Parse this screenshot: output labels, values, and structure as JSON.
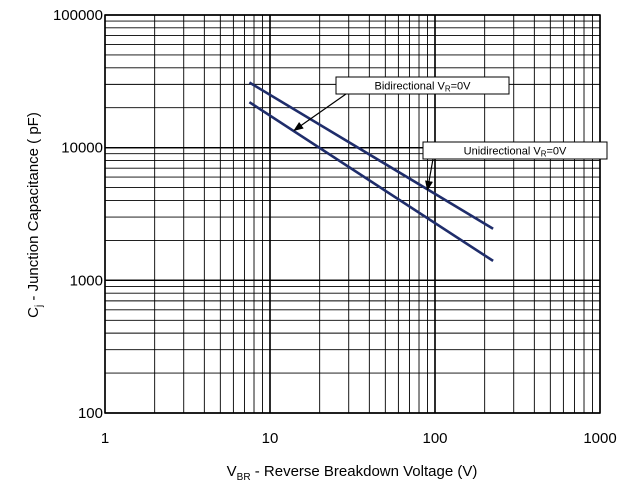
{
  "chart_data": {
    "type": "line",
    "x_scale": "log",
    "y_scale": "log",
    "xlim": [
      1,
      1000
    ],
    "ylim": [
      100,
      100000
    ],
    "grid": true,
    "x_tick_labels": [
      "1",
      "10",
      "100",
      "1000"
    ],
    "y_tick_labels": [
      "100",
      "1000",
      "10000",
      "100000"
    ],
    "xlabel": {
      "main": "V",
      "sub": "BR",
      "rest": " - Reverse Breakdown Voltage   (V)"
    },
    "ylabel": {
      "main": "C",
      "sub": "j",
      "rest": " - Junction Capacitance  ( pF)"
    },
    "series": [
      {
        "points": [
          [
            7.5,
            31000
          ],
          [
            225,
            2450
          ]
        ],
        "color": "#1f2d6b"
      },
      {
        "points": [
          [
            7.5,
            22000
          ],
          [
            225,
            1400
          ]
        ],
        "color": "#1f2d6b"
      }
    ],
    "annotations": [
      {
        "text_main": "Bidirectional V",
        "text_sub": "R",
        "text_rest": "=0V",
        "target": [
          14,
          13500
        ]
      },
      {
        "text_main": "Unidirectional V",
        "text_sub": "R",
        "text_rest": "=0V",
        "target": [
          90,
          4800
        ]
      }
    ]
  }
}
